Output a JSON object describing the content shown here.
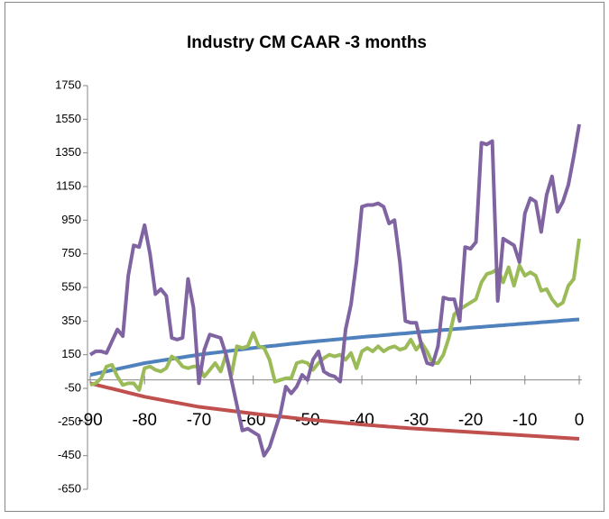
{
  "chart_data": {
    "type": "line",
    "title": "Industry CM CAAR -3 months",
    "x": [
      -90,
      -89,
      -88,
      -87,
      -86,
      -85,
      -84,
      -83,
      -82,
      -81,
      -80,
      -79,
      -78,
      -77,
      -76,
      -75,
      -74,
      -73,
      -72,
      -71,
      -70,
      -69,
      -68,
      -67,
      -66,
      -65,
      -64,
      -63,
      -62,
      -61,
      -60,
      -59,
      -58,
      -57,
      -56,
      -55,
      -54,
      -53,
      -52,
      -51,
      -50,
      -49,
      -48,
      -47,
      -46,
      -45,
      -44,
      -43,
      -42,
      -41,
      -40,
      -39,
      -38,
      -37,
      -36,
      -35,
      -34,
      -33,
      -32,
      -31,
      -30,
      -29,
      -28,
      -27,
      -26,
      -25,
      -24,
      -23,
      -22,
      -21,
      -20,
      -19,
      -18,
      -17,
      -16,
      -15,
      -14,
      -13,
      -12,
      -11,
      -10,
      -9,
      -8,
      -7,
      -6,
      -5,
      -4,
      -3,
      -2,
      -1,
      0
    ],
    "series": [
      {
        "color": "#4f81bd",
        "values": [
          30,
          37,
          44,
          51,
          58,
          65,
          72,
          79,
          86,
          93,
          100,
          105,
          110,
          115,
          120,
          125,
          130,
          135,
          140,
          145,
          150,
          154,
          158,
          162,
          166,
          170,
          174,
          178,
          182,
          186,
          190,
          194,
          197,
          201,
          204,
          208,
          211,
          215,
          218,
          222,
          225,
          228,
          231,
          234,
          237,
          240,
          243,
          246,
          249,
          252,
          255,
          258,
          261,
          263,
          266,
          269,
          272,
          275,
          277,
          280,
          283,
          286,
          288,
          291,
          294,
          297,
          299,
          302,
          305,
          307,
          310,
          313,
          315,
          318,
          320,
          323,
          325,
          328,
          330,
          333,
          335,
          338,
          340,
          343,
          345,
          348,
          350,
          353,
          355,
          358,
          360
        ]
      },
      {
        "color": "#c0504d",
        "values": [
          -20,
          -28,
          -36,
          -44,
          -52,
          -60,
          -68,
          -76,
          -84,
          -92,
          -100,
          -106,
          -112,
          -118,
          -124,
          -130,
          -136,
          -142,
          -148,
          -154,
          -160,
          -164,
          -168,
          -172,
          -176,
          -180,
          -184,
          -188,
          -192,
          -196,
          -200,
          -204,
          -207,
          -211,
          -214,
          -218,
          -221,
          -225,
          -228,
          -232,
          -235,
          -238,
          -241,
          -244,
          -247,
          -250,
          -253,
          -256,
          -259,
          -262,
          -265,
          -268,
          -270,
          -273,
          -275,
          -278,
          -280,
          -283,
          -285,
          -288,
          -290,
          -292,
          -294,
          -296,
          -298,
          -300,
          -302,
          -304,
          -306,
          -308,
          -310,
          -312,
          -314,
          -316,
          -318,
          -320,
          -322,
          -324,
          -326,
          -328,
          -330,
          -332,
          -334,
          -336,
          -338,
          -340,
          -342,
          -344,
          -346,
          -348,
          -350
        ]
      },
      {
        "color": "#9bbb59",
        "values": [
          -30,
          -20,
          10,
          80,
          90,
          20,
          -30,
          -20,
          -20,
          -60,
          70,
          80,
          60,
          50,
          70,
          140,
          120,
          80,
          70,
          80,
          80,
          20,
          60,
          100,
          50,
          150,
          30,
          200,
          190,
          200,
          280,
          200,
          190,
          120,
          -10,
          0,
          10,
          10,
          100,
          110,
          100,
          60,
          100,
          130,
          150,
          140,
          150,
          120,
          160,
          70,
          170,
          190,
          170,
          200,
          170,
          190,
          200,
          180,
          190,
          240,
          180,
          220,
          170,
          100,
          100,
          150,
          250,
          390,
          420,
          440,
          460,
          480,
          580,
          630,
          640,
          660,
          580,
          670,
          560,
          680,
          620,
          640,
          620,
          530,
          540,
          480,
          440,
          460,
          560,
          600,
          840
        ]
      },
      {
        "color": "#8064a2",
        "values": [
          150,
          170,
          170,
          160,
          230,
          300,
          260,
          620,
          800,
          790,
          920,
          750,
          510,
          540,
          500,
          250,
          240,
          250,
          600,
          430,
          -20,
          180,
          270,
          260,
          250,
          150,
          0,
          -150,
          -300,
          -290,
          -310,
          -330,
          -450,
          -400,
          -300,
          -200,
          -40,
          -80,
          -40,
          30,
          0,
          120,
          170,
          50,
          30,
          20,
          -10,
          300,
          450,
          700,
          1030,
          1040,
          1040,
          1050,
          1030,
          930,
          950,
          700,
          350,
          340,
          340,
          200,
          100,
          90,
          200,
          490,
          480,
          480,
          350,
          790,
          780,
          820,
          1410,
          1400,
          1420,
          470,
          840,
          820,
          800,
          700,
          990,
          1080,
          1060,
          880,
          1100,
          1210,
          1000,
          1060,
          1160,
          1330,
          1520
        ]
      }
    ],
    "xlim": [
      -90.5,
      0.5
    ],
    "xticks": [
      -90,
      -80,
      -70,
      -60,
      -50,
      -40,
      -30,
      -20,
      -10,
      0
    ],
    "ylim": [
      -650,
      1750
    ],
    "yticks": [
      -650,
      -450,
      -250,
      -50,
      150,
      350,
      550,
      750,
      950,
      1150,
      1350,
      1550,
      1750
    ]
  }
}
